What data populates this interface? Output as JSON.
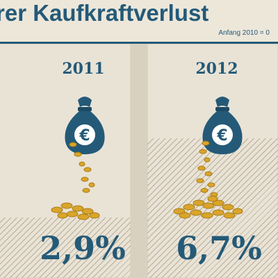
{
  "header": {
    "title": "rer Kaufkraftverlust",
    "subtitle": "Anfang 2010 = 0"
  },
  "icons": {
    "bag": "money-bag-euro-icon",
    "coins": "gold-coins-icon",
    "euro_symbol": "€"
  },
  "colors": {
    "accent": "#245a78",
    "gold": "#d9a52b",
    "background": "#ede7da"
  },
  "chart_data": {
    "type": "bar",
    "title": "rer Kaufkraftverlust",
    "subtitle": "Anfang 2010 = 0",
    "categories": [
      "2011",
      "2012"
    ],
    "values": [
      2.9,
      6.7
    ],
    "value_labels": [
      "2,9%",
      "6,7%"
    ],
    "unit": "%"
  }
}
